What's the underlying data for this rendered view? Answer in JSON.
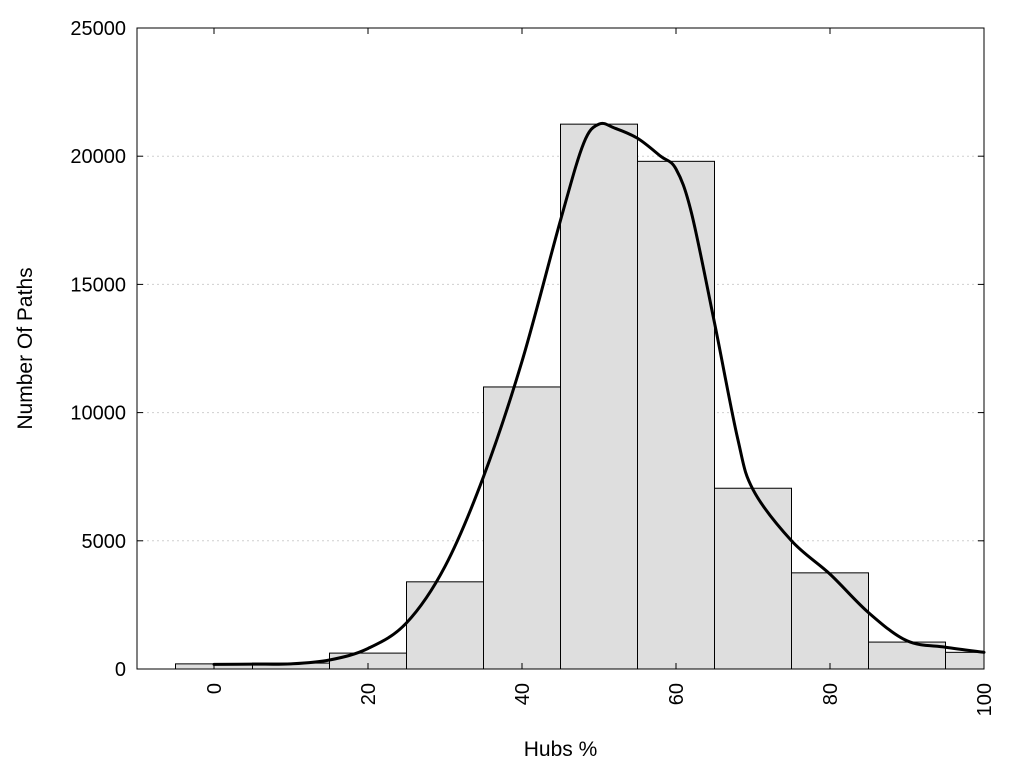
{
  "chart_data": {
    "type": "bar",
    "xlabel": "Hubs %",
    "ylabel": "Number Of Paths",
    "xlim": [
      -10,
      100
    ],
    "ylim": [
      0,
      25000
    ],
    "x_ticks": [
      0,
      20,
      40,
      60,
      80,
      100
    ],
    "y_ticks": [
      0,
      5000,
      10000,
      15000,
      20000,
      25000
    ],
    "grid": "horizontal-dotted",
    "bins": [
      {
        "start": -5,
        "end": 5,
        "value": 200
      },
      {
        "start": 5,
        "end": 15,
        "value": 230
      },
      {
        "start": 15,
        "end": 25,
        "value": 620
      },
      {
        "start": 25,
        "end": 35,
        "value": 3400
      },
      {
        "start": 35,
        "end": 45,
        "value": 11000
      },
      {
        "start": 45,
        "end": 55,
        "value": 21250
      },
      {
        "start": 55,
        "end": 65,
        "value": 19800
      },
      {
        "start": 65,
        "end": 75,
        "value": 7050
      },
      {
        "start": 75,
        "end": 85,
        "value": 3750
      },
      {
        "start": 85,
        "end": 95,
        "value": 1050
      },
      {
        "start": 95,
        "end": 100,
        "value": 650
      }
    ],
    "curve": {
      "type": "line",
      "x": [
        0,
        5,
        10,
        15,
        20,
        25,
        30,
        35,
        40,
        45,
        48,
        50,
        52,
        55,
        58,
        60,
        62,
        65,
        68,
        70,
        75,
        80,
        85,
        90,
        95,
        100
      ],
      "y": [
        180,
        190,
        200,
        350,
        800,
        1800,
        4000,
        7500,
        12000,
        17500,
        20500,
        21250,
        21100,
        20700,
        20000,
        19500,
        17800,
        13500,
        9000,
        7000,
        5000,
        3700,
        2200,
        1100,
        850,
        650
      ]
    }
  }
}
